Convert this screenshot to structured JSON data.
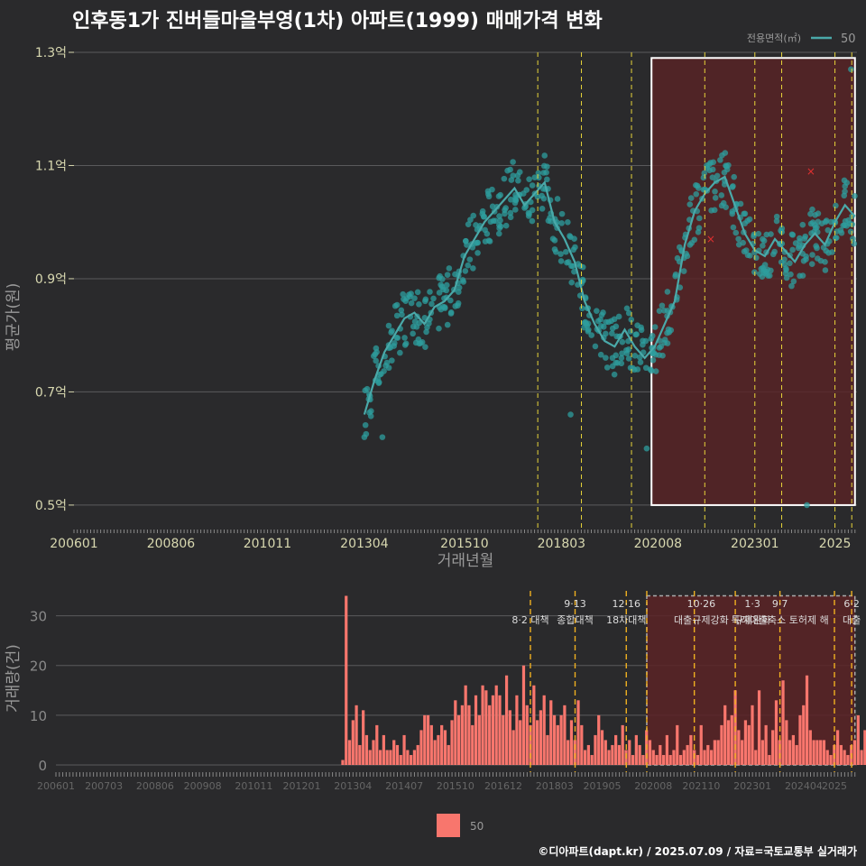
{
  "title": "인후동1가 진버들마을부영(1차) 아파트(1999) 매매가격 변화",
  "credit": "©디아파트(dapt.kr) / 2025.07.09 / 자료=국토교통부 실거래가",
  "colors": {
    "background": "#2a2a2c",
    "price_point": "#2e9e9e",
    "price_line": "#4aa9a9",
    "volume_bar": "#f8766d",
    "highlight_fill": "#5a2326",
    "policy_line_top": "#e8d53a",
    "policy_line_bottom": "#f0b020",
    "grid": "#5a5a5c",
    "axis_text": "#d8d8b0"
  },
  "chart_data": [
    {
      "type": "scatter",
      "name": "price",
      "ylabel": "평균가(원)",
      "xlabel": "거래년월",
      "ylim": [
        0.46,
        1.3
      ],
      "yticks": [
        "0.5억",
        "0.7억",
        "0.9억",
        "1.1억",
        "1.3억"
      ],
      "ytick_values": [
        0.5,
        0.7,
        0.9,
        1.1,
        1.3
      ],
      "xticks": [
        "200601",
        "200806",
        "201011",
        "201304",
        "201510",
        "201803",
        "202008",
        "202301",
        "2025"
      ],
      "xtick_values": [
        2006.0,
        2008.42,
        2010.83,
        2013.25,
        2015.75,
        2018.17,
        2020.58,
        2023.0,
        2025.0
      ],
      "xlim": [
        2006.0,
        2025.55
      ],
      "grid": true,
      "legend": {
        "title": "전용면적(㎡)",
        "entries": [
          "50"
        ],
        "placement": "top-right"
      },
      "highlight_range": [
        2020.42,
        2025.5
      ],
      "policy_lines": [
        2017.58,
        2018.67,
        2019.92,
        2021.75,
        2023.0,
        2023.67,
        2025.0,
        2025.42
      ],
      "trend": {
        "x": [
          2013.25,
          2013.5,
          2013.75,
          2014.0,
          2014.25,
          2014.5,
          2014.75,
          2015.0,
          2015.25,
          2015.5,
          2015.75,
          2016.0,
          2016.25,
          2016.5,
          2016.75,
          2017.0,
          2017.25,
          2017.5,
          2017.75,
          2018.0,
          2018.25,
          2018.5,
          2018.75,
          2019.0,
          2019.25,
          2019.5,
          2019.75,
          2020.0,
          2020.25,
          2020.5,
          2020.75,
          2021.0,
          2021.25,
          2021.5,
          2021.75,
          2022.0,
          2022.25,
          2022.5,
          2022.75,
          2023.0,
          2023.25,
          2023.5,
          2023.75,
          2024.0,
          2024.25,
          2024.5,
          2024.75,
          2025.0,
          2025.25,
          2025.5
        ],
        "y": [
          0.66,
          0.72,
          0.77,
          0.8,
          0.83,
          0.84,
          0.82,
          0.85,
          0.86,
          0.88,
          0.94,
          0.97,
          1.0,
          1.02,
          1.04,
          1.06,
          1.03,
          1.05,
          1.07,
          1.0,
          0.97,
          0.93,
          0.86,
          0.82,
          0.79,
          0.78,
          0.81,
          0.78,
          0.76,
          0.78,
          0.82,
          0.86,
          0.96,
          1.02,
          1.05,
          1.07,
          1.08,
          1.03,
          0.98,
          0.95,
          0.94,
          0.97,
          0.95,
          0.93,
          0.96,
          0.98,
          0.96,
          1.0,
          1.03,
          1.01
        ]
      },
      "scatter_spread": 0.05,
      "scatter_points_per_step": 12,
      "outliers": [
        [
          2013.25,
          0.62
        ],
        [
          2013.7,
          0.62
        ],
        [
          2018.4,
          0.66
        ],
        [
          2020.3,
          0.6
        ],
        [
          2024.3,
          0.5
        ],
        [
          2025.4,
          1.27
        ]
      ],
      "marked_points": [
        [
          2021.9,
          0.97
        ],
        [
          2024.4,
          1.09
        ]
      ]
    },
    {
      "type": "bar",
      "name": "volume",
      "ylabel": "거래량(건)",
      "ylim": [
        0,
        35
      ],
      "yticks": [
        "0",
        "10",
        "20",
        "30"
      ],
      "ytick_values": [
        0,
        10,
        20,
        30
      ],
      "xticks": [
        "200601",
        "200703",
        "200806",
        "200908",
        "201011",
        "201201",
        "201304",
        "201407",
        "201510",
        "201612",
        "201803",
        "201905",
        "202008",
        "202110",
        "202301",
        "202404",
        "2025"
      ],
      "xtick_values": [
        2006.0,
        2007.17,
        2008.42,
        2009.58,
        2010.83,
        2012.0,
        2013.25,
        2014.5,
        2015.75,
        2016.92,
        2018.17,
        2019.33,
        2020.58,
        2021.75,
        2023.0,
        2024.25,
        2025.0
      ],
      "xlim": [
        2006.0,
        2025.55
      ],
      "series": [
        {
          "name": "50",
          "start": 2013.0,
          "step": 0.0833,
          "values": [
            1,
            34,
            5,
            9,
            12,
            4,
            11,
            6,
            3,
            5,
            8,
            3,
            6,
            3,
            3,
            5,
            4,
            2,
            6,
            3,
            2,
            3,
            4,
            7,
            10,
            10,
            8,
            5,
            6,
            8,
            7,
            4,
            9,
            13,
            10,
            12,
            16,
            12,
            8,
            14,
            10,
            16,
            15,
            12,
            14,
            16,
            14,
            10,
            18,
            11,
            7,
            14,
            9,
            20,
            12,
            8,
            16,
            9,
            11,
            14,
            6,
            13,
            10,
            8,
            10,
            12,
            5,
            9,
            5,
            13,
            8,
            3,
            4,
            2,
            6,
            10,
            7,
            5,
            3,
            4,
            6,
            4,
            8,
            3,
            5,
            2,
            6,
            4,
            2,
            7,
            5,
            3,
            2,
            4,
            2,
            6,
            2,
            3,
            8,
            2,
            3,
            4,
            6,
            3,
            2,
            8,
            3,
            4,
            3,
            5,
            5,
            8,
            12,
            9,
            10,
            15,
            7,
            5,
            9,
            8,
            12,
            3,
            15,
            5,
            8,
            2,
            7,
            13,
            5,
            17,
            9,
            5,
            6,
            4,
            10,
            12,
            18,
            7,
            5,
            5,
            5,
            5,
            3,
            2,
            4,
            7,
            4,
            3,
            2,
            4,
            5,
            10,
            3,
            7,
            4,
            12,
            6,
            3,
            8,
            5,
            5,
            3,
            4,
            5,
            9,
            7,
            8,
            2,
            4,
            4,
            9,
            7,
            8,
            3,
            2
          ]
        }
      ],
      "highlight_range": [
        2020.42,
        2025.5
      ],
      "policy_lines": [
        2017.58,
        2018.67,
        2019.92,
        2020.42,
        2021.58,
        2022.58,
        2023.67,
        2025.0,
        2025.42
      ],
      "annotations": [
        {
          "x": 2017.58,
          "line1": "",
          "line2": "8·2 대책"
        },
        {
          "x": 2018.67,
          "line1": "9·13",
          "line2": "종합대책"
        },
        {
          "x": 2019.92,
          "line1": "12·16",
          "line2": "18차대책"
        },
        {
          "x": 2021.75,
          "line1": "10·26",
          "line2": "대출규제강화"
        },
        {
          "x": 2023.0,
          "line1": "1·3",
          "line2": "규제완화"
        },
        {
          "x": 2023.67,
          "line1": "9·7",
          "line2": "특례대출축소 토허제 해"
        },
        {
          "x": 2025.42,
          "line1": "6·2",
          "line2": "대출"
        }
      ],
      "legend": {
        "entries": [
          "50"
        ],
        "placement": "bottom-center"
      }
    }
  ]
}
